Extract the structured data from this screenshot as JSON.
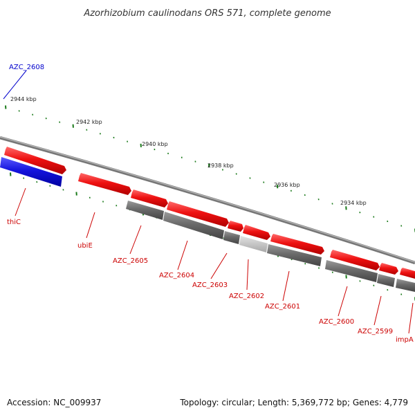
{
  "title": "Azorhizobium caulinodans ORS 571, complete genome",
  "footer": {
    "accession": "Accession: NC_009937",
    "summary": "Topology: circular; Length: 5,369,772 bp; Genes: 4,779"
  },
  "colors": {
    "forward": "#ee1111",
    "reverse_gene": "#1111dd",
    "pseudo": "#666666",
    "ticks": "#1a7a1a",
    "backbone": "#888888",
    "label_red": "#cc0000",
    "label_blue": "#0000cc"
  },
  "scale_labels": [
    {
      "text": "2944 kbp"
    },
    {
      "text": "2942 kbp"
    },
    {
      "text": "2940 kbp"
    },
    {
      "text": "2938 kbp"
    },
    {
      "text": "2936 kbp"
    },
    {
      "text": "2934 kbp"
    }
  ],
  "gene_labels": [
    {
      "text": "AZC_2608",
      "color": "blue"
    },
    {
      "text": "thiC",
      "color": "red"
    },
    {
      "text": "ubiE",
      "color": "red"
    },
    {
      "text": "AZC_2605",
      "color": "red"
    },
    {
      "text": "AZC_2604",
      "color": "red"
    },
    {
      "text": "AZC_2603",
      "color": "red"
    },
    {
      "text": "AZC_2602",
      "color": "red"
    },
    {
      "text": "AZC_2601",
      "color": "red"
    },
    {
      "text": "AZC_2600",
      "color": "red"
    },
    {
      "text": "AZC_2599",
      "color": "red"
    },
    {
      "text": "impA",
      "color": "red"
    }
  ]
}
